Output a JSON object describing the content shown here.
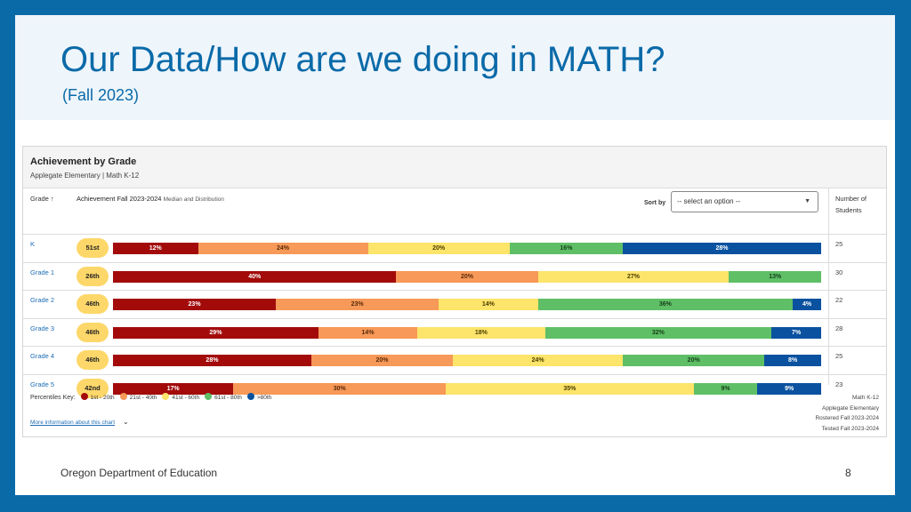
{
  "slide": {
    "title": "Our Data/How are we doing in MATH?",
    "subtitle": "(Fall 2023)",
    "footer": "Oregon Department of Education",
    "page_number": "8"
  },
  "card": {
    "title": "Achievement by Grade",
    "subtitle": "Applegate Elementary | Math K-12",
    "grade_header": "Grade",
    "sort_arrow_icon": "arrow-up-icon",
    "achievement_header": "Achievement Fall 2023-2024",
    "achievement_header_small": "Median and Distribution",
    "sort_label": "Sort by",
    "sort_value": "-- select an option --",
    "students_header": "Number of Students",
    "more_info": "More information about this chart",
    "more_icon": "chevron-down-icon"
  },
  "legend": {
    "key_label": "Percentiles Key:",
    "items": [
      {
        "label": "1st - 20th",
        "color": "#a30b0b"
      },
      {
        "label": "21st - 40th",
        "color": "#f79958"
      },
      {
        "label": "41st - 60th",
        "color": "#fde46a"
      },
      {
        "label": "61st - 80th",
        "color": "#5fbf67"
      },
      {
        "label": ">80th",
        "color": "#0a52a0"
      }
    ]
  },
  "meta": {
    "line1": "Math K-12",
    "line2": "Applegate Elementary",
    "line3": "Rostered Fall 2023-2024",
    "line4": "Tested Fall 2023-2024"
  },
  "chart_data": {
    "type": "bar",
    "stacked": true,
    "orientation": "horizontal",
    "title": "Achievement by Grade",
    "categories": [
      "K",
      "Grade 1",
      "Grade 2",
      "Grade 3",
      "Grade 4",
      "Grade 5"
    ],
    "medians": [
      "51st",
      "26th",
      "46th",
      "46th",
      "46th",
      "42nd"
    ],
    "students": [
      25,
      30,
      22,
      28,
      25,
      23
    ],
    "series": [
      {
        "name": "1st - 20th",
        "color": "#a30b0b",
        "values": [
          12,
          40,
          23,
          29,
          28,
          17
        ]
      },
      {
        "name": "21st - 40th",
        "color": "#f79958",
        "values": [
          24,
          20,
          23,
          14,
          20,
          30
        ]
      },
      {
        "name": "41st - 60th",
        "color": "#fde46a",
        "values": [
          20,
          27,
          14,
          18,
          24,
          35
        ]
      },
      {
        "name": "61st - 80th",
        "color": "#5fbf67",
        "values": [
          16,
          13,
          36,
          32,
          20,
          9
        ]
      },
      {
        "name": ">80th",
        "color": "#0a52a0",
        "values": [
          28,
          0,
          4,
          7,
          8,
          9
        ]
      }
    ]
  }
}
